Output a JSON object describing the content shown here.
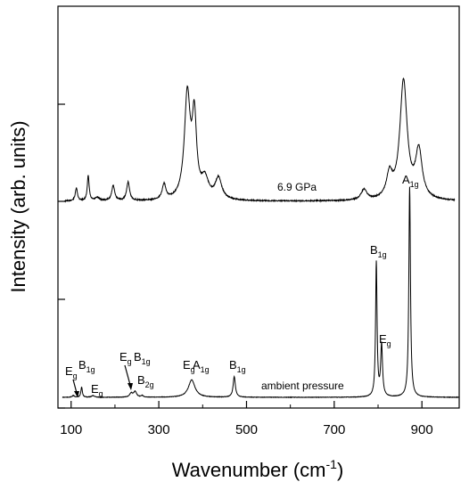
{
  "chart_data": {
    "type": "line",
    "xlabel_main": "Wavenumber (cm",
    "xlabel_sup": "-1",
    "xlabel_end": ")",
    "ylabel": "Intensity (arb. units)",
    "xlim": [
      70,
      985
    ],
    "x_ticks": [
      100,
      300,
      500,
      700,
      900
    ],
    "x_ticklabels": [
      "100",
      "300",
      "500",
      "700",
      "900"
    ],
    "grid": false,
    "series": [
      {
        "name": "6.9 GPa",
        "baseline": 0.0,
        "peaks": [
          {
            "x": 112,
            "h": 0.2,
            "w": 3
          },
          {
            "x": 139,
            "h": 0.4,
            "w": 2.5
          },
          {
            "x": 160,
            "h": 0.05,
            "w": 6
          },
          {
            "x": 196,
            "h": 0.24,
            "w": 4
          },
          {
            "x": 230,
            "h": 0.29,
            "w": 4
          },
          {
            "x": 312,
            "h": 0.24,
            "w": 5
          },
          {
            "x": 365,
            "h": 1.62,
            "w": 8
          },
          {
            "x": 381,
            "h": 1.2,
            "w": 6
          },
          {
            "x": 405,
            "h": 0.3,
            "w": 10
          },
          {
            "x": 436,
            "h": 0.33,
            "w": 9
          },
          {
            "x": 768,
            "h": 0.16,
            "w": 8
          },
          {
            "x": 826,
            "h": 0.36,
            "w": 8
          },
          {
            "x": 858,
            "h": 1.85,
            "w": 10
          },
          {
            "x": 893,
            "h": 0.74,
            "w": 9
          }
        ]
      },
      {
        "name": "ambient pressure",
        "baseline": 0.0,
        "peaks": [
          {
            "x": 105,
            "h": 0.03,
            "w": 3
          },
          {
            "x": 124,
            "h": 0.18,
            "w": 2
          },
          {
            "x": 150,
            "h": 0.03,
            "w": 4
          },
          {
            "x": 237,
            "h": 0.07,
            "w": 4
          },
          {
            "x": 246,
            "h": 0.1,
            "w": 4
          },
          {
            "x": 262,
            "h": 0.03,
            "w": 3
          },
          {
            "x": 375,
            "h": 0.31,
            "w": 9
          },
          {
            "x": 472,
            "h": 0.37,
            "w": 3
          },
          {
            "x": 796,
            "h": 2.4,
            "w": 2
          },
          {
            "x": 808,
            "h": 0.92,
            "w": 2.5
          },
          {
            "x": 872,
            "h": 3.75,
            "w": 2.2
          }
        ]
      }
    ],
    "annotations": {
      "series_top_label": "6.9 GPa",
      "series_bottom_label": "ambient pressure",
      "peak_labels": [
        {
          "main": "E",
          "sub": "g"
        },
        {
          "main": "B",
          "sub": "1g"
        },
        {
          "main": "E",
          "sub": "g"
        },
        {
          "main": "E",
          "sub": "g"
        },
        {
          "main": "B",
          "sub": "1g"
        },
        {
          "main": "B",
          "sub": "2g"
        },
        {
          "main": "E",
          "sub": "g"
        },
        {
          "main": "A",
          "sub": "1g"
        },
        {
          "main": "B",
          "sub": "1g"
        },
        {
          "main": "B",
          "sub": "1g"
        },
        {
          "main": "E",
          "sub": "g"
        },
        {
          "main": "A",
          "sub": "1g"
        }
      ]
    }
  }
}
